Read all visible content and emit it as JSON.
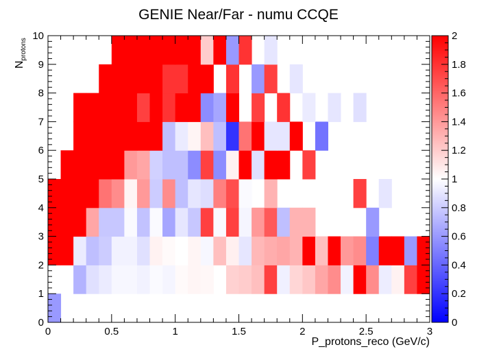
{
  "chart_data": {
    "type": "heatmap",
    "title": "GENIE Near/Far - numu CCQE",
    "xlabel": "P_protons_reco (GeV/c)",
    "ylabel": {
      "main": "N",
      "sub": "protons"
    },
    "xlim": [
      0,
      3
    ],
    "ylim": [
      0,
      10
    ],
    "zlim": [
      0,
      2
    ],
    "nx": 30,
    "ny": 10,
    "x_ticks": [
      "0",
      "0.5",
      "1",
      "1.5",
      "2",
      "2.5",
      "3"
    ],
    "y_ticks": [
      "0",
      "1",
      "2",
      "3",
      "4",
      "5",
      "6",
      "7",
      "8",
      "9",
      "10"
    ],
    "z_ticks": [
      "0",
      "0.2",
      "0.4",
      "0.6",
      "0.8",
      "1",
      "1.2",
      "1.4",
      "1.6",
      "1.8",
      "2"
    ],
    "color_min": "#0000ff",
    "color_mid": "#ffffff",
    "color_max": "#ff0000",
    "values": [
      [
        0.6,
        null,
        null,
        null,
        null,
        null,
        null,
        null,
        null,
        null,
        null,
        null,
        null,
        null,
        null,
        null,
        null,
        null,
        null,
        null,
        null,
        null,
        null,
        null,
        null,
        null,
        null,
        null,
        null,
        null
      ],
      [
        null,
        null,
        0.7,
        0.88,
        0.92,
        0.97,
        0.97,
        0.95,
        0.98,
        0.96,
        1.02,
        1.04,
        1.03,
        null,
        1.18,
        1.2,
        1.25,
        1.75,
        0.94,
        1.16,
        1.22,
        1.35,
        1.45,
        0.95,
        2.0,
        1.45,
        0.93,
        1.05,
        1.75,
        2.0
      ],
      [
        2.0,
        2.0,
        0.92,
        0.75,
        0.8,
        0.95,
        0.95,
        0.88,
        1.05,
        1.02,
        1.0,
        1.04,
        0.97,
        1.25,
        1.06,
        0.9,
        1.28,
        1.32,
        1.35,
        1.3,
        2.0,
        1.25,
        2.0,
        1.4,
        1.45,
        0.5,
        2.0,
        2.0,
        0.6,
        2.0
      ],
      [
        2.0,
        2.0,
        2.0,
        1.35,
        0.78,
        0.78,
        0.98,
        0.76,
        0.98,
        0.65,
        0.9,
        0.78,
        1.75,
        0.98,
        1.75,
        0.96,
        1.4,
        1.65,
        0.75,
        1.3,
        1.3,
        null,
        null,
        null,
        null,
        0.6,
        null,
        null,
        null,
        null
      ],
      [
        2.0,
        2.0,
        2.0,
        2.0,
        1.55,
        1.45,
        1.04,
        1.4,
        0.8,
        1.45,
        0.75,
        0.9,
        0.87,
        1.5,
        1.7,
        0.98,
        null,
        1.3,
        null,
        null,
        null,
        null,
        null,
        null,
        1.75,
        null,
        0.9,
        null,
        null,
        null
      ],
      [
        null,
        2.0,
        2.0,
        2.0,
        2.0,
        2.0,
        1.4,
        1.35,
        0.82,
        0.75,
        0.75,
        0.55,
        1.75,
        0.55,
        1.05,
        2.0,
        0.88,
        2.0,
        2.0,
        null,
        1.75,
        null,
        null,
        null,
        null,
        null,
        null,
        null,
        null,
        null
      ],
      [
        null,
        null,
        2.0,
        2.0,
        2.0,
        2.0,
        2.0,
        2.0,
        2.0,
        0.75,
        0.92,
        1.04,
        1.25,
        0.75,
        0.2,
        1.55,
        2.0,
        0.9,
        0.9,
        2.0,
        null,
        0.45,
        null,
        null,
        null,
        null,
        null,
        null,
        null,
        null
      ],
      [
        null,
        null,
        2.0,
        2.0,
        2.0,
        2.0,
        2.0,
        1.75,
        2.0,
        1.8,
        2.0,
        2.0,
        0.55,
        0.65,
        2.0,
        null,
        1.75,
        null,
        1.8,
        null,
        0.92,
        null,
        0.9,
        null,
        0.88,
        null,
        null,
        null,
        null,
        null
      ],
      [
        null,
        null,
        null,
        null,
        2.0,
        2.0,
        2.0,
        2.0,
        2.0,
        1.8,
        1.8,
        2.0,
        2.0,
        null,
        1.8,
        null,
        0.6,
        1.75,
        null,
        0.9,
        null,
        null,
        null,
        null,
        null,
        null,
        null,
        null,
        null,
        null
      ],
      [
        null,
        null,
        null,
        null,
        null,
        2.0,
        2.0,
        2.0,
        2.0,
        2.0,
        2.0,
        2.0,
        1.2,
        2.0,
        0.6,
        1.8,
        null,
        0.9,
        null,
        null,
        null,
        null,
        null,
        null,
        null,
        null,
        null,
        null,
        null,
        null
      ]
    ]
  }
}
